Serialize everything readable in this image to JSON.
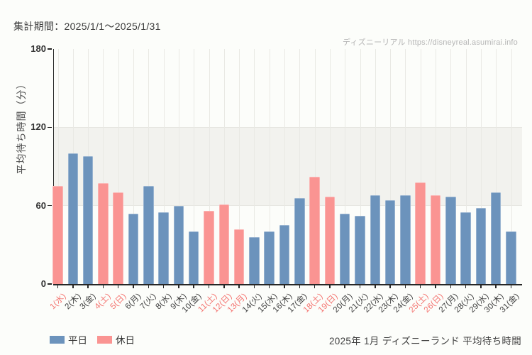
{
  "header": {
    "period_label": "集計期間：2025/1/1～2025/1/31",
    "watermark": "ディズニーリアル https://disneyreal.asumirai.info"
  },
  "legend": {
    "weekday_label": "平日",
    "holiday_label": "休日"
  },
  "footer": {
    "caption": "2025年 1月 ディズニーランド 平均待ち時間"
  },
  "chart_data": {
    "type": "bar",
    "title": "2025年 1月 ディズニーランド 平均待ち時間",
    "xlabel": "",
    "ylabel": "平均待ち時間（分）",
    "ylim": [
      0,
      180
    ],
    "yticks": [
      0,
      60,
      120,
      180
    ],
    "shaded_band": [
      60,
      120
    ],
    "grid": "vertical-per-category",
    "legend_position": "bottom-left",
    "categories": [
      "1(水)",
      "2(木)",
      "3(金)",
      "4(土)",
      "5(日)",
      "6(月)",
      "7(火)",
      "8(水)",
      "9(木)",
      "10(金)",
      "11(土)",
      "12(日)",
      "13(月)",
      "14(火)",
      "15(水)",
      "16(木)",
      "17(金)",
      "18(土)",
      "19(日)",
      "20(月)",
      "21(火)",
      "22(水)",
      "23(木)",
      "24(金)",
      "25(土)",
      "26(日)",
      "27(月)",
      "28(火)",
      "29(水)",
      "30(木)",
      "31(金)"
    ],
    "values": [
      75,
      100,
      98,
      77,
      70,
      54,
      75,
      55,
      60,
      40,
      56,
      61,
      42,
      36,
      40,
      45,
      66,
      82,
      67,
      54,
      52,
      68,
      64,
      68,
      78,
      68,
      67,
      55,
      58,
      70,
      40
    ],
    "day_types": [
      "holiday",
      "weekday",
      "weekday",
      "holiday",
      "holiday",
      "weekday",
      "weekday",
      "weekday",
      "weekday",
      "weekday",
      "holiday",
      "holiday",
      "holiday",
      "weekday",
      "weekday",
      "weekday",
      "weekday",
      "holiday",
      "holiday",
      "weekday",
      "weekday",
      "weekday",
      "weekday",
      "weekday",
      "holiday",
      "holiday",
      "weekday",
      "weekday",
      "weekday",
      "weekday",
      "weekday"
    ],
    "series_colors": {
      "weekday": "#6c93bc",
      "holiday": "#fa9492"
    },
    "label_colors": {
      "weekday": "#3f3f3f",
      "holiday": "#f4736f"
    }
  }
}
